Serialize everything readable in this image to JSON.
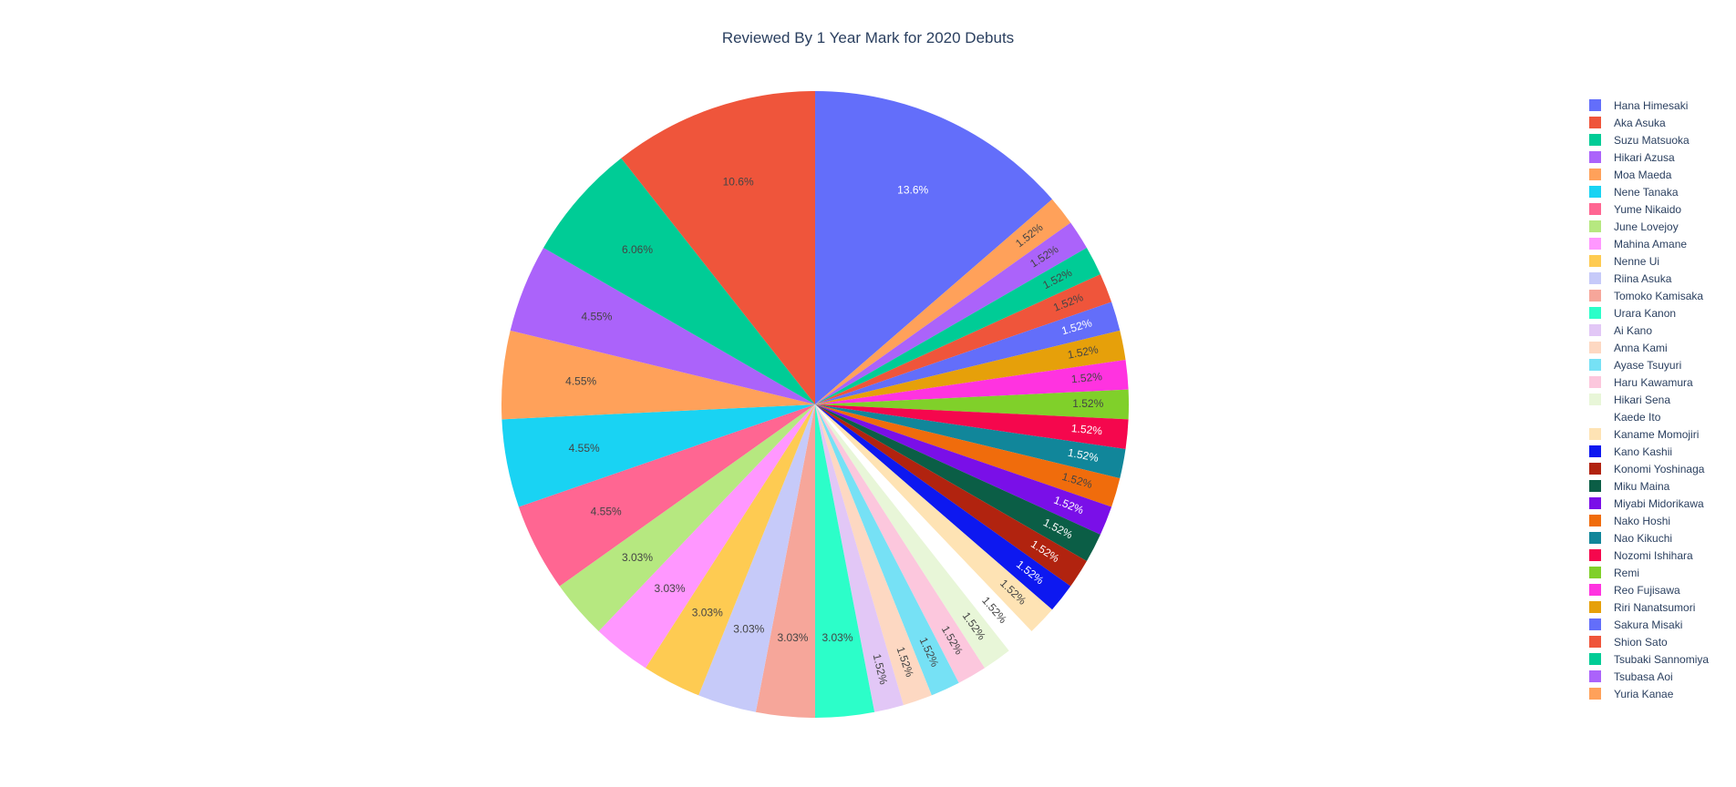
{
  "chart_data": {
    "type": "pie",
    "title": "Reviewed By 1 Year Mark for 2020 Debuts",
    "legend_position": "right",
    "start_angle_deg": 90,
    "direction": "clockwise",
    "slices": [
      {
        "name": "Hana Himesaki",
        "value": 9,
        "label": "13.6%",
        "color": "#636efa",
        "text_color": "#ffffff"
      },
      {
        "name": "Yuria Kanae",
        "value": 1,
        "label": "1.52%",
        "color": "#ffa15a",
        "text_color": "#444444"
      },
      {
        "name": "Tsubasa Aoi",
        "value": 1,
        "label": "1.52%",
        "color": "#ab63fa",
        "text_color": "#444444"
      },
      {
        "name": "Tsubaki Sannomiya",
        "value": 1,
        "label": "1.52%",
        "color": "#00cc96",
        "text_color": "#444444"
      },
      {
        "name": "Shion Sato",
        "value": 1,
        "label": "1.52%",
        "color": "#ef553b",
        "text_color": "#444444"
      },
      {
        "name": "Sakura Misaki",
        "value": 1,
        "label": "1.52%",
        "color": "#636efa",
        "text_color": "#ffffff"
      },
      {
        "name": "Riri Nanatsumori",
        "value": 1,
        "label": "1.52%",
        "color": "#e6a00a",
        "text_color": "#444444"
      },
      {
        "name": "Reo Fujisawa",
        "value": 1,
        "label": "1.52%",
        "color": "#ff33e0",
        "text_color": "#444444"
      },
      {
        "name": "Remi",
        "value": 1,
        "label": "1.52%",
        "color": "#80d02a",
        "text_color": "#444444"
      },
      {
        "name": "Nozomi Ishihara",
        "value": 1,
        "label": "1.52%",
        "color": "#f5074d",
        "text_color": "#ffffff"
      },
      {
        "name": "Nao Kikuchi",
        "value": 1,
        "label": "1.52%",
        "color": "#11869a",
        "text_color": "#ffffff"
      },
      {
        "name": "Nako Hoshi",
        "value": 1,
        "label": "1.52%",
        "color": "#f06c0c",
        "text_color": "#444444"
      },
      {
        "name": "Miyabi Midorikawa",
        "value": 1,
        "label": "1.52%",
        "color": "#7a0fe8",
        "text_color": "#ffffff"
      },
      {
        "name": "Miku Maina",
        "value": 1,
        "label": "1.52%",
        "color": "#0b5e46",
        "text_color": "#ffffff"
      },
      {
        "name": "Konomi Yoshinaga",
        "value": 1,
        "label": "1.52%",
        "color": "#b1230f",
        "text_color": "#ffffff"
      },
      {
        "name": "Kano Kashii",
        "value": 1,
        "label": "1.52%",
        "color": "#0d18f0",
        "text_color": "#ffffff"
      },
      {
        "name": "Kaname Momojiri",
        "value": 1,
        "label": "1.52%",
        "color": "#fee3b4",
        "text_color": "#444444"
      },
      {
        "name": "Kaede Ito",
        "value": 1,
        "label": "1.52%",
        "color": "#ffffff",
        "text_color": "#444444"
      },
      {
        "name": "Hikari Sena",
        "value": 1,
        "label": "1.52%",
        "color": "#e8f6d8",
        "text_color": "#444444"
      },
      {
        "name": "Haru Kawamura",
        "value": 1,
        "label": "1.52%",
        "color": "#fcc7dd",
        "text_color": "#444444"
      },
      {
        "name": "Ayase Tsuyuri",
        "value": 1,
        "label": "1.52%",
        "color": "#76e1f5",
        "text_color": "#444444"
      },
      {
        "name": "Anna Kami",
        "value": 1,
        "label": "1.52%",
        "color": "#fdd8c2",
        "text_color": "#444444"
      },
      {
        "name": "Ai Kano",
        "value": 1,
        "label": "1.52%",
        "color": "#e2c7f6",
        "text_color": "#444444"
      },
      {
        "name": "Urara Kanon",
        "value": 2,
        "label": "3.03%",
        "color": "#2cfec9",
        "text_color": "#444444"
      },
      {
        "name": "Tomoko Kamisaka",
        "value": 2,
        "label": "3.03%",
        "color": "#f6a69a",
        "text_color": "#444444"
      },
      {
        "name": "Riina Asuka",
        "value": 2,
        "label": "3.03%",
        "color": "#c6caf9",
        "text_color": "#444444"
      },
      {
        "name": "Nenne Ui",
        "value": 2,
        "label": "3.03%",
        "color": "#fecb52",
        "text_color": "#444444"
      },
      {
        "name": "Mahina Amane",
        "value": 2,
        "label": "3.03%",
        "color": "#ff97ff",
        "text_color": "#444444"
      },
      {
        "name": "June Lovejoy",
        "value": 2,
        "label": "3.03%",
        "color": "#b6e880",
        "text_color": "#444444"
      },
      {
        "name": "Yume Nikaido",
        "value": 3,
        "label": "4.55%",
        "color": "#ff6692",
        "text_color": "#444444"
      },
      {
        "name": "Nene Tanaka",
        "value": 3,
        "label": "4.55%",
        "color": "#19d3f3",
        "text_color": "#444444"
      },
      {
        "name": "Moa Maeda",
        "value": 3,
        "label": "4.55%",
        "color": "#ffa15a",
        "text_color": "#444444"
      },
      {
        "name": "Hikari Azusa",
        "value": 3,
        "label": "4.55%",
        "color": "#ab63fa",
        "text_color": "#444444"
      },
      {
        "name": "Suzu Matsuoka",
        "value": 4,
        "label": "6.06%",
        "color": "#00cc96",
        "text_color": "#444444"
      },
      {
        "name": "Aka Asuka",
        "value": 7,
        "label": "10.6%",
        "color": "#ef553b",
        "text_color": "#444444"
      }
    ],
    "legend": [
      {
        "name": "Hana Himesaki",
        "color": "#636efa"
      },
      {
        "name": "Aka Asuka",
        "color": "#ef553b"
      },
      {
        "name": "Suzu Matsuoka",
        "color": "#00cc96"
      },
      {
        "name": "Hikari Azusa",
        "color": "#ab63fa"
      },
      {
        "name": "Moa Maeda",
        "color": "#ffa15a"
      },
      {
        "name": "Nene Tanaka",
        "color": "#19d3f3"
      },
      {
        "name": "Yume Nikaido",
        "color": "#ff6692"
      },
      {
        "name": "June Lovejoy",
        "color": "#b6e880"
      },
      {
        "name": "Mahina Amane",
        "color": "#ff97ff"
      },
      {
        "name": "Nenne Ui",
        "color": "#fecb52"
      },
      {
        "name": "Riina Asuka",
        "color": "#c6caf9"
      },
      {
        "name": "Tomoko Kamisaka",
        "color": "#f6a69a"
      },
      {
        "name": "Urara Kanon",
        "color": "#2cfec9"
      },
      {
        "name": "Ai Kano",
        "color": "#e2c7f6"
      },
      {
        "name": "Anna Kami",
        "color": "#fdd8c2"
      },
      {
        "name": "Ayase Tsuyuri",
        "color": "#76e1f5"
      },
      {
        "name": "Haru Kawamura",
        "color": "#fcc7dd"
      },
      {
        "name": "Hikari Sena",
        "color": "#e8f6d8"
      },
      {
        "name": "Kaede Ito",
        "color": "#ffffff"
      },
      {
        "name": "Kaname Momojiri",
        "color": "#fee3b4"
      },
      {
        "name": "Kano Kashii",
        "color": "#0d18f0"
      },
      {
        "name": "Konomi Yoshinaga",
        "color": "#b1230f"
      },
      {
        "name": "Miku Maina",
        "color": "#0b5e46"
      },
      {
        "name": "Miyabi Midorikawa",
        "color": "#7a0fe8"
      },
      {
        "name": "Nako Hoshi",
        "color": "#f06c0c"
      },
      {
        "name": "Nao Kikuchi",
        "color": "#11869a"
      },
      {
        "name": "Nozomi Ishihara",
        "color": "#f5074d"
      },
      {
        "name": "Remi",
        "color": "#80d02a"
      },
      {
        "name": "Reo Fujisawa",
        "color": "#ff33e0"
      },
      {
        "name": "Riri Nanatsumori",
        "color": "#e6a00a"
      },
      {
        "name": "Sakura Misaki",
        "color": "#636efa"
      },
      {
        "name": "Shion Sato",
        "color": "#ef553b"
      },
      {
        "name": "Tsubaki Sannomiya",
        "color": "#00cc96"
      },
      {
        "name": "Tsubasa Aoi",
        "color": "#ab63fa"
      },
      {
        "name": "Yuria Kanae",
        "color": "#ffa15a"
      }
    ]
  }
}
